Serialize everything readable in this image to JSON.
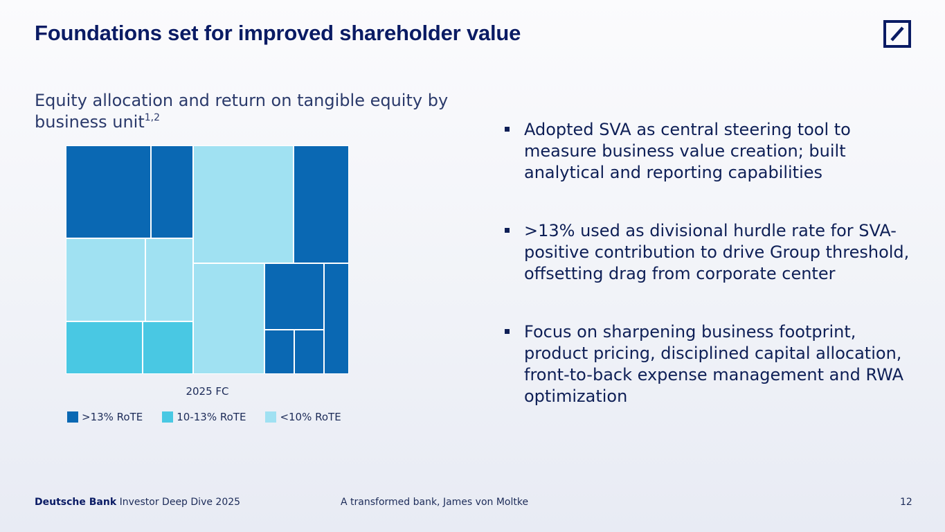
{
  "slide": {
    "title": "Foundations set for improved shareholder value",
    "subtitle": "Equity allocation and return on tangible equity by business unit",
    "subtitle_footnote": "1,2"
  },
  "chart_data": {
    "type": "treemap",
    "xlabel": "2025 FC",
    "legend": [
      {
        "label": ">13% RoTE",
        "color": "#0a68b3"
      },
      {
        "label": "10-13% RoTE",
        "color": "#49c8e3"
      },
      {
        "label": "<10% RoTE",
        "color": "#a0e1f2"
      }
    ]
  },
  "bullets": [
    "Adopted SVA as central steering tool to measure business value creation; built analytical and reporting capabilities",
    ">13% used as divisional hurdle rate for SVA-positive contribution to drive Group threshold, offsetting drag from corporate center",
    "Focus on sharpening business footprint, product pricing, disciplined capital allocation, front-to-back expense management and RWA optimization"
  ],
  "footer": {
    "brand": "Deutsche Bank",
    "event": "Investor Deep Dive 2025",
    "presentation": "A transformed bank, James von Moltke",
    "page_number": "12"
  },
  "colors": {
    "brand": "#0a1b64",
    "high": "#0a68b3",
    "mid": "#49c8e3",
    "low": "#a0e1f2"
  }
}
